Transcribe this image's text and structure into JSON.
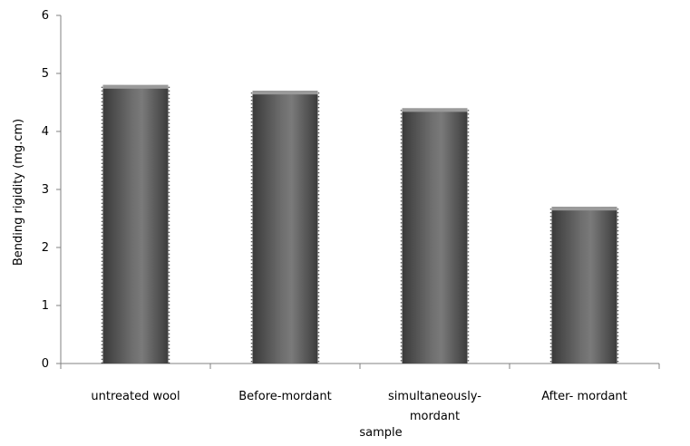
{
  "chart_data": {
    "type": "bar",
    "title": "",
    "xlabel": "sample",
    "ylabel": "Bending rigidity (mg.cm)",
    "ylim": [
      0,
      6
    ],
    "yticks": [
      0,
      1,
      2,
      3,
      4,
      5,
      6
    ],
    "categories": [
      [
        "untreated  wool"
      ],
      [
        "Before-mordant"
      ],
      [
        "simultaneously-",
        "mordant"
      ],
      [
        "After- mordant"
      ]
    ],
    "values": [
      4.8,
      4.7,
      4.4,
      2.7
    ],
    "grid": false,
    "legend": "none",
    "colors": {
      "bar_dark": "#3c3c3c",
      "bar_mid": "#7a7a7a",
      "bar_light": "#5a5a5a",
      "axis": "#808080"
    }
  }
}
